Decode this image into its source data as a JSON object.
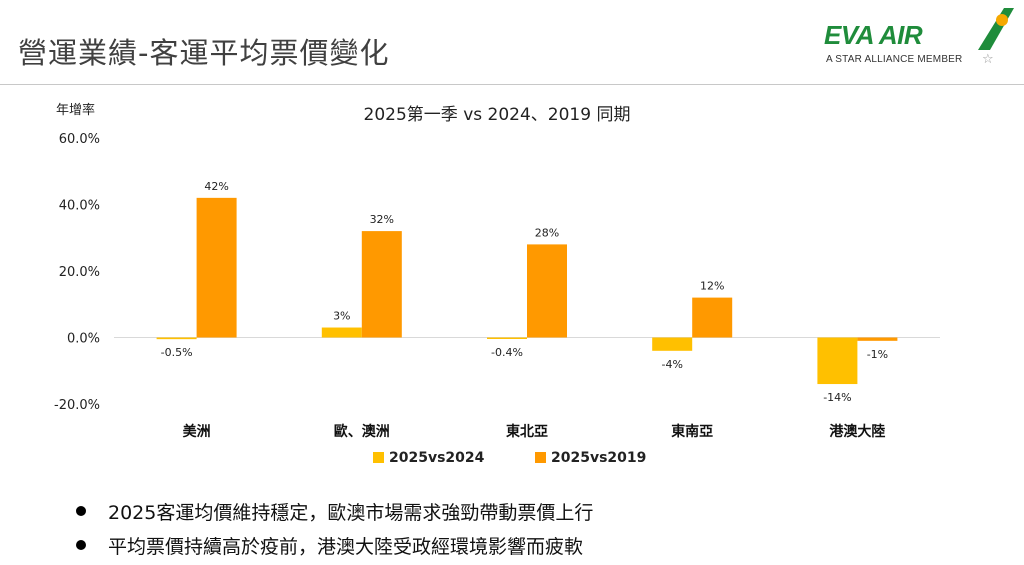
{
  "page": {
    "title": "營運業績-客運平均票價變化",
    "logo_text": "EVA AIR",
    "logo_subtitle": "A STAR ALLIANCE MEMBER",
    "accent": "#1f8c3b"
  },
  "bullets": [
    "2025客運均價維持穩定，歐澳市場需求強勁帶動票價上行",
    "平均票價持續高於疫前，港澳大陸受政經環境影響而疲軟"
  ],
  "chart_data": {
    "type": "bar",
    "title": "2025第一季 vs 2024、2019 同期",
    "ylabel": "年增率",
    "xlabel": "",
    "ylim": [
      -20,
      60
    ],
    "yticks": [
      -20,
      0,
      20,
      40,
      60
    ],
    "ytick_labels": [
      "-20.0%",
      "0.0%",
      "20.0%",
      "40.0%",
      "60.0%"
    ],
    "categories": [
      "美洲",
      "歐、澳洲",
      "東北亞",
      "東南亞",
      "港澳大陸"
    ],
    "series": [
      {
        "name": "2025vs2024",
        "color": "#ffc000",
        "values": [
          -0.5,
          3,
          -0.4,
          -4,
          -14
        ],
        "labels": [
          "-0.5%",
          "3%",
          "-0.4%",
          "-4%",
          "-14%"
        ]
      },
      {
        "name": "2025vs2019",
        "color": "#ff9900",
        "values": [
          42,
          32,
          28,
          12,
          -1
        ],
        "labels": [
          "42%",
          "32%",
          "28%",
          "12%",
          "-1%"
        ]
      }
    ],
    "legend_position": "bottom",
    "grid": false
  }
}
